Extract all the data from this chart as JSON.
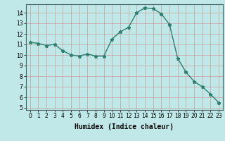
{
  "x": [
    0,
    1,
    2,
    3,
    4,
    5,
    6,
    7,
    8,
    9,
    10,
    11,
    12,
    13,
    14,
    15,
    16,
    17,
    18,
    19,
    20,
    21,
    22,
    23
  ],
  "y": [
    11.2,
    11.1,
    10.9,
    11.0,
    10.4,
    10.0,
    9.9,
    10.1,
    9.9,
    9.9,
    11.5,
    12.2,
    12.6,
    14.0,
    14.45,
    14.4,
    13.9,
    12.9,
    9.7,
    8.4,
    7.5,
    7.0,
    6.3,
    5.5
  ],
  "line_color": "#2e7d6e",
  "marker": "*",
  "marker_size": 3.5,
  "linewidth": 1.0,
  "bg_color": "#c0e8e8",
  "grid_color": "#c8a0a0",
  "xlabel": "Humidex (Indice chaleur)",
  "xlim": [
    -0.5,
    23.5
  ],
  "ylim": [
    4.8,
    14.8
  ],
  "yticks": [
    5,
    6,
    7,
    8,
    9,
    10,
    11,
    12,
    13,
    14
  ],
  "xticks": [
    0,
    1,
    2,
    3,
    4,
    5,
    6,
    7,
    8,
    9,
    10,
    11,
    12,
    13,
    14,
    15,
    16,
    17,
    18,
    19,
    20,
    21,
    22,
    23
  ],
  "tick_fontsize": 5.5,
  "label_fontsize": 7.0
}
